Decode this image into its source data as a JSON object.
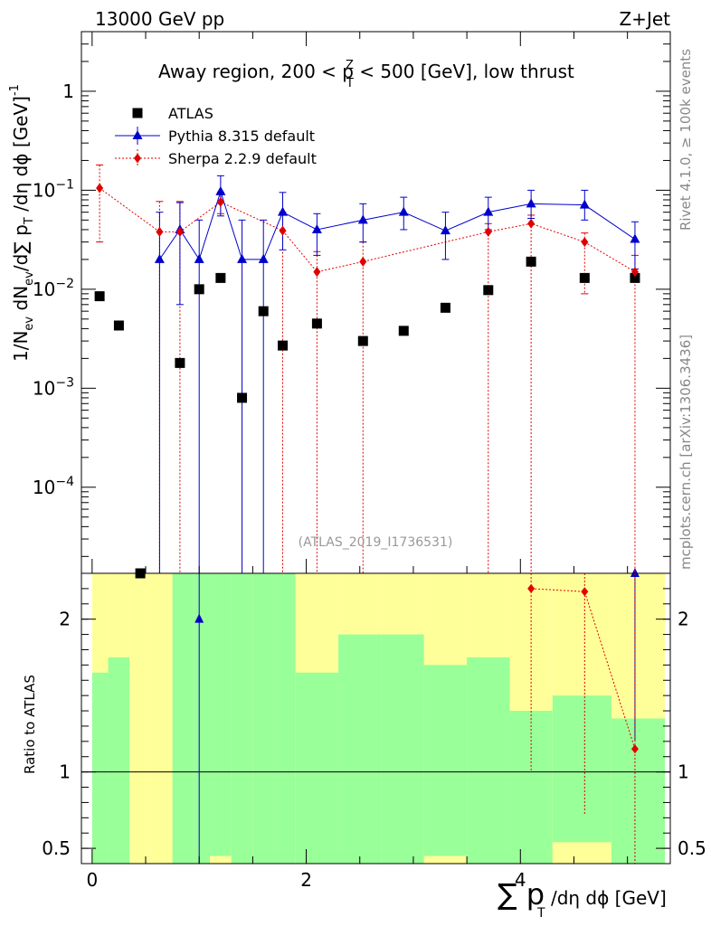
{
  "header": {
    "left": "13000 GeV pp",
    "right": "Z+Jet",
    "title": "Away region, 200 < p",
    "title_sup": "Z",
    "title_sub": "T",
    "title_tail": " < 500 [GeV], low thrust",
    "watermark": "(ATLAS_2019_I1736531)"
  },
  "side_text": {
    "rivet": "Rivet 4.1.0, ≥ 100k events",
    "mcplots": "mcplots.cern.ch [arXiv:1306.3436]"
  },
  "axes": {
    "ylabel_main": "1/N",
    "ylabel_main_sub": "ev",
    "ylabel_main_mid": " dN",
    "ylabel_main_sub2": "ev",
    "ylabel_main_tail": "/d∑ p",
    "ylabel_main_sub3": "T",
    "ylabel_main_end": " /dη dϕ  [GeV]",
    "ylabel_main_sup": "-1",
    "ylabel_ratio": "Ratio to ATLAS",
    "xlabel": "∑ p",
    "xlabel_sub": "T",
    "xlabel_tail": " /dη dϕ [GeV]",
    "main_yticks": [
      {
        "value": 1,
        "mant": "1",
        "exp": ""
      },
      {
        "value": 0.1,
        "mant": "10",
        "exp": "−1"
      },
      {
        "value": 0.01,
        "mant": "10",
        "exp": "−2"
      },
      {
        "value": 0.001,
        "mant": "10",
        "exp": "−3"
      },
      {
        "value": 0.0001,
        "mant": "10",
        "exp": "−4"
      }
    ],
    "ratio_yticks": [
      "0.5",
      "1",
      "2"
    ],
    "xticks": [
      "0",
      "2",
      "4"
    ]
  },
  "legend": [
    {
      "label": "ATLAS",
      "marker": "square",
      "color": "#000000"
    },
    {
      "label": "Pythia 8.315 default",
      "marker": "triangle",
      "color": "#0000cc"
    },
    {
      "label": "Sherpa 2.2.9 default",
      "marker": "diamond",
      "color": "#e00000"
    }
  ],
  "chart_data": {
    "type": "scatter",
    "x_range": [
      -0.1,
      5.4
    ],
    "main_y_range_log": [
      1.35e-05,
      4
    ],
    "ratio_y_range": [
      0.4,
      2.3
    ],
    "bins": [
      0,
      0.15,
      0.35,
      0.55,
      0.75,
      0.95,
      1.1,
      1.3,
      1.5,
      1.7,
      1.9,
      2.3,
      2.7,
      3.1,
      3.5,
      3.9,
      4.3,
      4.85,
      5.35
    ],
    "series": [
      {
        "name": "ATLAS",
        "x": [
          0.07,
          0.25,
          0.45,
          0.82,
          1.0,
          1.2,
          1.4,
          1.6,
          1.78,
          2.1,
          2.53,
          2.91,
          3.3,
          3.7,
          4.1,
          4.6,
          5.07
        ],
        "y": [
          0.0085,
          0.0043,
          1.35e-05,
          0.0018,
          0.01,
          0.013,
          0.0008,
          0.006,
          0.0027,
          0.0045,
          0.003,
          0.0038,
          0.0065,
          0.0098,
          0.019,
          0.013,
          0.013
        ]
      },
      {
        "name": "Pythia 8.315 default",
        "x": [
          0.63,
          0.82,
          1.0,
          1.2,
          1.4,
          1.6,
          1.78,
          2.1,
          2.53,
          2.91,
          3.3,
          3.7,
          4.1,
          4.6,
          5.07
        ],
        "y": [
          0.02,
          0.04,
          0.02,
          0.097,
          0.02,
          0.02,
          0.06,
          0.04,
          0.05,
          0.06,
          0.039,
          0.06,
          0.073,
          0.071,
          0.032
        ],
        "yerr_up": [
          0.06,
          0.075,
          0.05,
          0.14,
          0.05,
          0.05,
          0.095,
          0.058,
          0.073,
          0.085,
          0.06,
          0.085,
          0.1,
          0.1,
          0.048
        ],
        "yerr_down": [
          1.35e-05,
          0.007,
          1.35e-05,
          0.055,
          1.35e-05,
          1.35e-05,
          0.025,
          0.022,
          0.03,
          0.04,
          0.02,
          0.04,
          0.052,
          0.05,
          0.016
        ]
      },
      {
        "name": "Sherpa 2.2.9 default",
        "x": [
          0.07,
          0.63,
          0.82,
          1.2,
          1.78,
          2.1,
          2.53,
          3.7,
          4.1,
          4.6,
          5.07
        ],
        "y": [
          0.105,
          0.038,
          0.038,
          0.076,
          0.039,
          0.015,
          0.019,
          0.038,
          0.046,
          0.03,
          0.015
        ],
        "yerr_up": [
          0.18,
          0.077,
          0.077,
          0.096,
          0.06,
          0.024,
          0.03,
          0.046,
          0.056,
          0.037,
          0.022
        ],
        "yerr_down": [
          0.03,
          1.35e-05,
          1.35e-05,
          0.058,
          1.35e-05,
          1.35e-05,
          1.35e-05,
          1.35e-05,
          1.35e-05,
          0.009,
          1.35e-05
        ]
      }
    ],
    "ratio": {
      "band_yellow": [
        [
          1.6,
          2.3
        ],
        [
          1.6,
          2.3
        ],
        [
          0.4,
          2.3
        ],
        [
          0.4,
          2.3
        ],
        [
          0.4,
          2.3
        ],
        [
          0.4,
          2.3
        ],
        [
          0.4,
          2.3
        ],
        [
          0.4,
          2.3
        ],
        [
          0.4,
          2.3
        ],
        [
          0.4,
          2.3
        ],
        [
          0.4,
          2.3
        ],
        [
          0.4,
          2.3
        ],
        [
          0.4,
          2.3
        ],
        [
          0.4,
          2.3
        ],
        [
          0.4,
          2.3
        ],
        [
          0.4,
          2.3
        ],
        [
          0.4,
          2.3
        ],
        [
          0.4,
          2.3
        ]
      ],
      "band_green": [
        [
          0.4,
          1.65
        ],
        [
          0.4,
          1.75
        ],
        null,
        null,
        [
          0.4,
          2.3
        ],
        [
          0.4,
          2.3
        ],
        [
          0.45,
          2.3
        ],
        [
          0.4,
          2.3
        ],
        [
          0.4,
          2.3
        ],
        [
          0.4,
          2.3
        ],
        [
          0.4,
          1.65
        ],
        [
          0.4,
          1.9
        ],
        [
          0.4,
          1.9
        ],
        [
          0.45,
          1.7
        ],
        [
          0.4,
          1.75
        ],
        [
          0.4,
          1.4
        ],
        [
          0.54,
          1.5
        ],
        [
          0.4,
          1.35
        ]
      ],
      "pythia": {
        "x": [
          1.0,
          5.07
        ],
        "y": [
          2.0,
          2.3
        ],
        "yerr_up": [
          2.3,
          2.3
        ],
        "yerr_down": [
          0.4,
          1.2
        ]
      },
      "sherpa": {
        "x": [
          4.1,
          4.6,
          5.07
        ],
        "y": [
          2.2,
          2.18,
          1.15
        ],
        "yerr_up": [
          2.3,
          2.3,
          2.3
        ],
        "yerr_down": [
          1.0,
          0.72,
          0.4
        ]
      }
    }
  }
}
